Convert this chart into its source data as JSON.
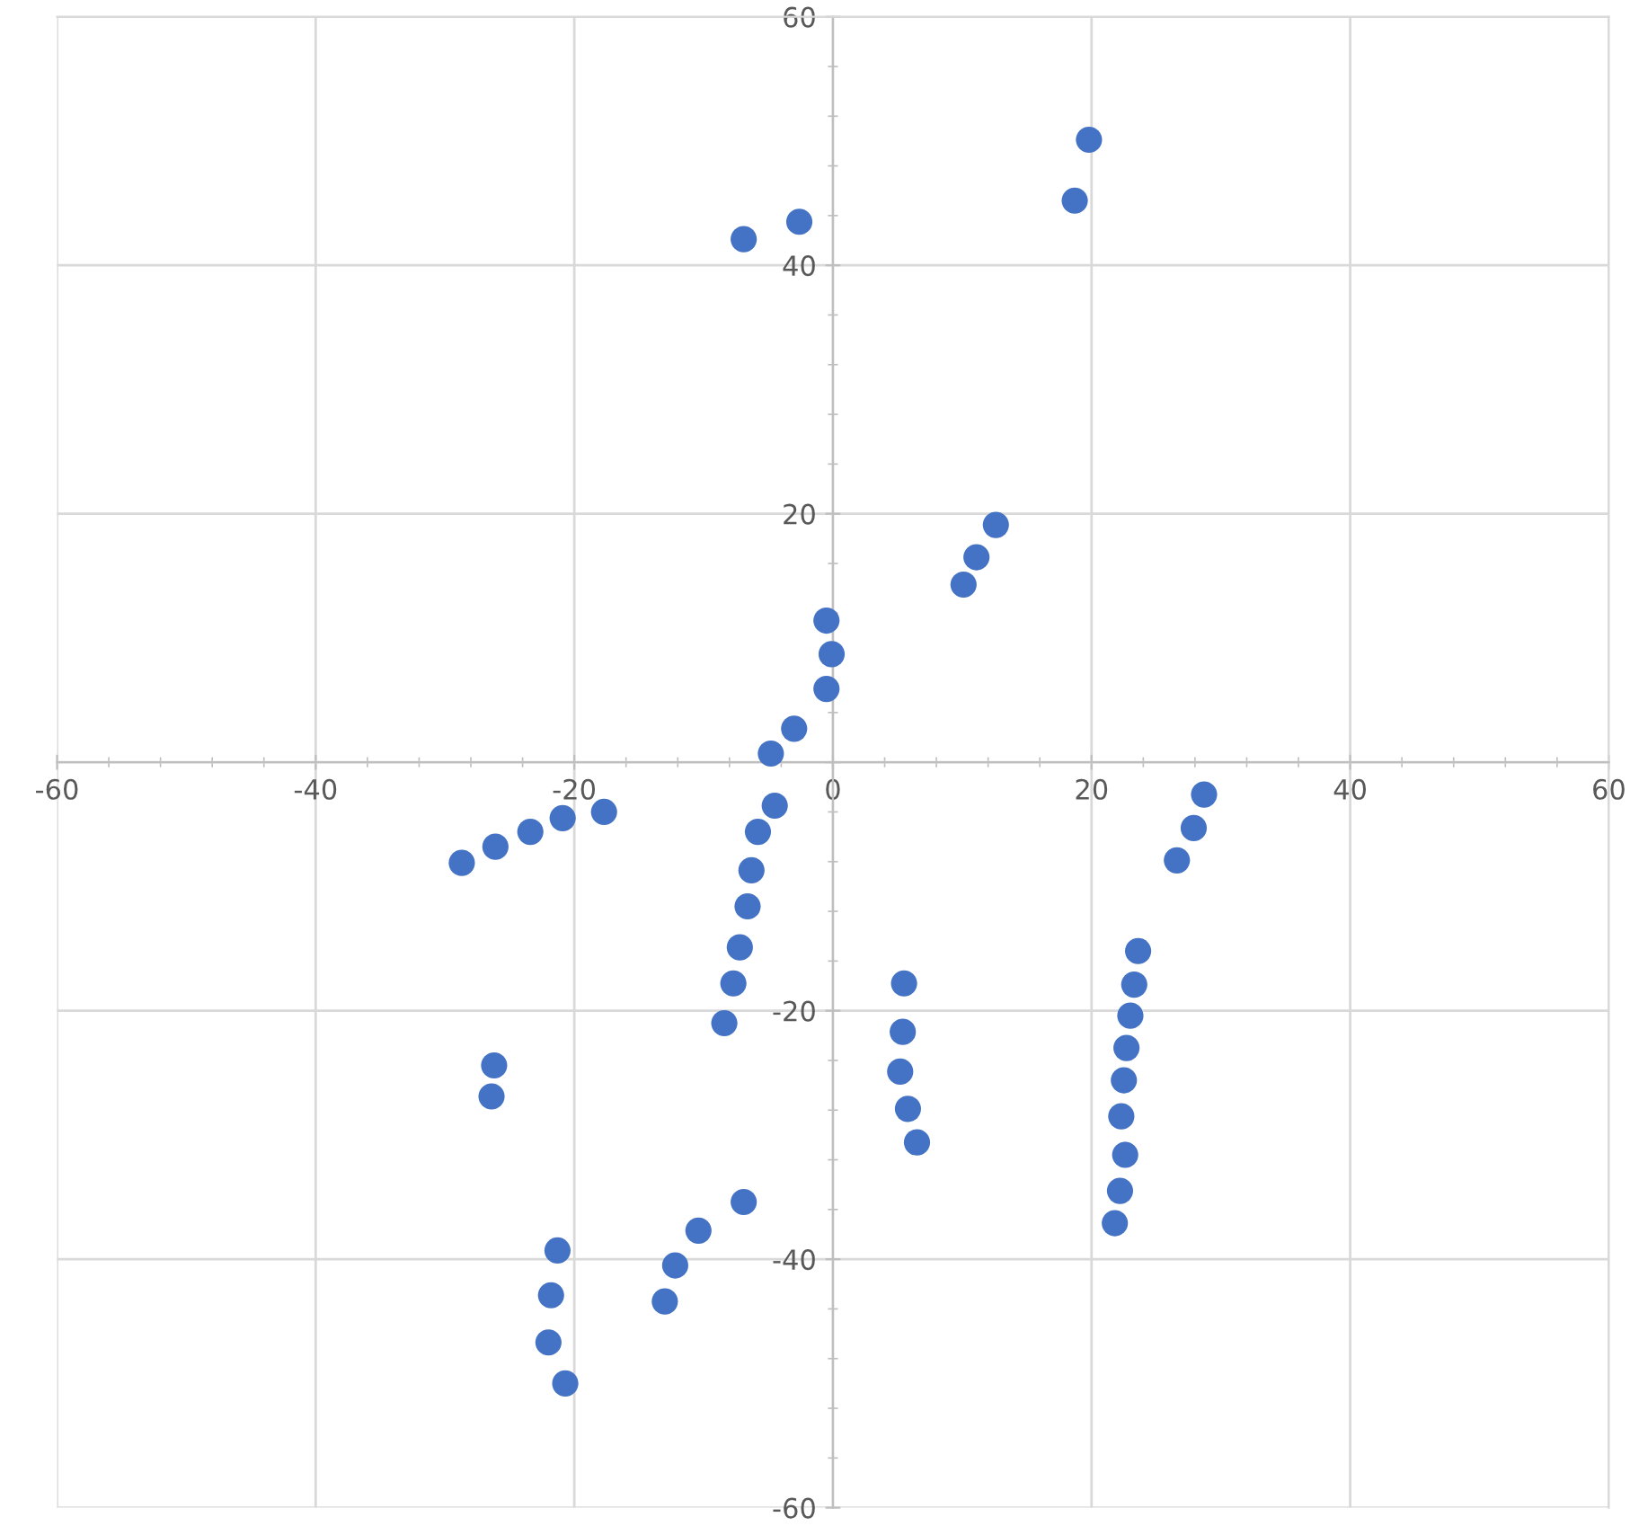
{
  "chart_data": {
    "type": "scatter",
    "color": "#4472c4",
    "marker": "circle",
    "grid": true,
    "xlim": [
      -60,
      60
    ],
    "ylim": [
      -60,
      60
    ],
    "xticks": [
      -60,
      -40,
      -20,
      {
        "value": 0,
        "label": "0"
      },
      20,
      40,
      60
    ],
    "yticks": [
      -60,
      -40,
      -20,
      {
        "value": 0,
        "label": null
      },
      20,
      40,
      60
    ],
    "x": [
      -6.9,
      -2.6,
      19.8,
      18.7,
      12.6,
      11.1,
      10.1,
      -0.5,
      -0.1,
      -0.5,
      -3.0,
      -4.8,
      -4.5,
      -5.8,
      -6.3,
      -6.6,
      -7.2,
      -7.7,
      -8.4,
      -17.7,
      -20.9,
      -23.4,
      -26.1,
      -28.7,
      -26.2,
      -26.4,
      -21.3,
      -21.8,
      -22.0,
      -20.7,
      -13.0,
      -12.2,
      -10.4,
      -6.9,
      5.5,
      5.4,
      5.2,
      5.8,
      6.5,
      28.7,
      27.9,
      26.6,
      23.6,
      23.3,
      23.0,
      22.7,
      22.5,
      22.3,
      22.6,
      22.2,
      21.8
    ],
    "values": [
      42.1,
      43.5,
      50.1,
      45.2,
      19.1,
      16.5,
      14.3,
      11.4,
      8.7,
      5.9,
      2.7,
      0.7,
      -3.5,
      -5.6,
      -8.7,
      -11.6,
      -14.9,
      -17.8,
      -21.0,
      -4.0,
      -4.5,
      -5.6,
      -6.8,
      -8.1,
      -24.4,
      -26.9,
      -39.3,
      -42.9,
      -46.7,
      -50.0,
      -43.4,
      -40.5,
      -37.7,
      -35.4,
      -17.8,
      -21.7,
      -24.9,
      -27.9,
      -30.6,
      -2.6,
      -5.3,
      -7.9,
      -15.2,
      -17.9,
      -20.4,
      -23.0,
      -25.6,
      -28.5,
      -31.6,
      -34.5,
      -37.1
    ]
  }
}
